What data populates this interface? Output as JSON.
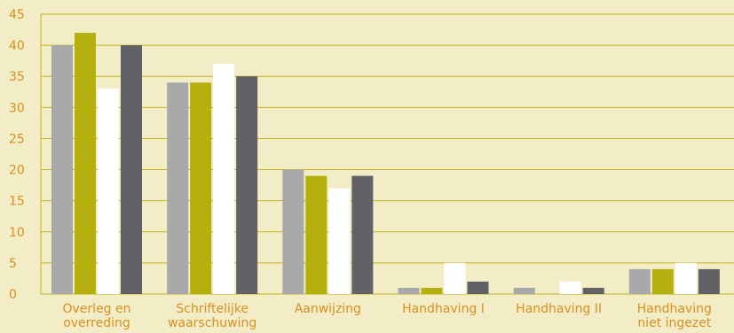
{
  "colors": {
    "background": "#f2ecc7",
    "grid": "#c3b51a",
    "text": "#d9901e",
    "series": [
      "#a9a9ab",
      "#b5b00e",
      "#ffffff",
      "#626166"
    ]
  },
  "chart_data": {
    "type": "bar",
    "title": "",
    "xlabel": "",
    "ylabel": "",
    "ylim": [
      0,
      45
    ],
    "yticks": [
      0,
      5,
      10,
      15,
      20,
      25,
      30,
      35,
      40,
      45
    ],
    "grid": true,
    "legend": "none",
    "categories": [
      [
        "Overleg en",
        "overreding"
      ],
      [
        "Schriftelijke",
        "waarschuwing"
      ],
      [
        "Aanwijzing"
      ],
      [
        "Handhaving I"
      ],
      [
        "Handhaving II"
      ],
      [
        "Handhaving",
        "niet ingezet"
      ]
    ],
    "series": [
      {
        "values": [
          40,
          34,
          20,
          1,
          1,
          4
        ]
      },
      {
        "values": [
          42,
          34,
          19,
          1,
          0,
          4
        ]
      },
      {
        "values": [
          33,
          37,
          17,
          5,
          2,
          5
        ]
      },
      {
        "values": [
          40,
          35,
          19,
          2,
          1,
          4
        ]
      }
    ]
  }
}
